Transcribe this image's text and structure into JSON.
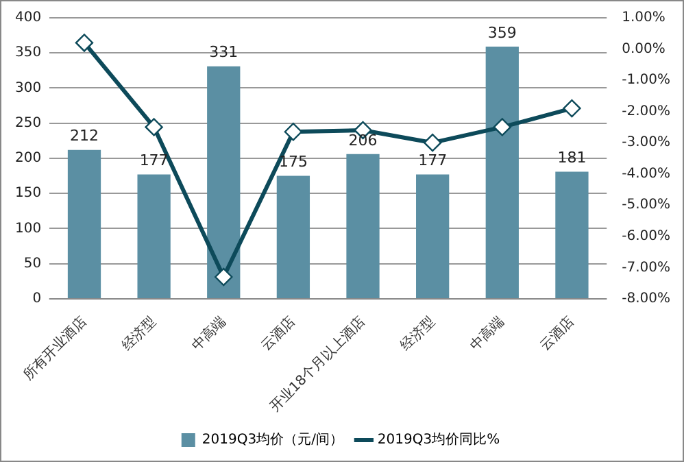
{
  "chart_data": {
    "type": "bar",
    "categories": [
      "所有开业酒店",
      "经济型",
      "中高端",
      "云酒店",
      "开业18个月以上酒店",
      "经济型",
      "中高端",
      "云酒店"
    ],
    "series": [
      {
        "name": "2019Q3均价（元/间）",
        "color": "#5b8fa3",
        "values": [
          212,
          177,
          331,
          175,
          206,
          177,
          359,
          181
        ],
        "value_labels": [
          "212",
          "177",
          "331",
          "175",
          "206",
          "177",
          "359",
          "181"
        ]
      },
      {
        "name": "2019Q3均价同比%",
        "type": "line",
        "axis": "y2",
        "color": "#0d4a5a",
        "marker": "diamond",
        "values": [
          0.2,
          -2.5,
          -7.3,
          -2.65,
          -2.6,
          -3.0,
          -2.5,
          -1.9
        ]
      }
    ],
    "ylim": [
      0,
      400
    ],
    "yticks": [
      0,
      50,
      100,
      150,
      200,
      250,
      300,
      350,
      400
    ],
    "y2lim": [
      -8,
      1
    ],
    "y2ticks": [
      {
        "value": -8,
        "label": "-8.00%"
      },
      {
        "value": -7,
        "label": "-7.00%"
      },
      {
        "value": -6,
        "label": "-6.00%"
      },
      {
        "value": -5,
        "label": "-5.00%"
      },
      {
        "value": -4,
        "label": "-4.00%"
      },
      {
        "value": -3,
        "label": "-3.00%"
      },
      {
        "value": -2,
        "label": "-2.00%"
      },
      {
        "value": -1,
        "label": "-1.00%"
      },
      {
        "value": 0,
        "label": "0.00%"
      },
      {
        "value": 1,
        "label": "1.00%"
      }
    ],
    "grid": "y",
    "legend": "bottom"
  }
}
